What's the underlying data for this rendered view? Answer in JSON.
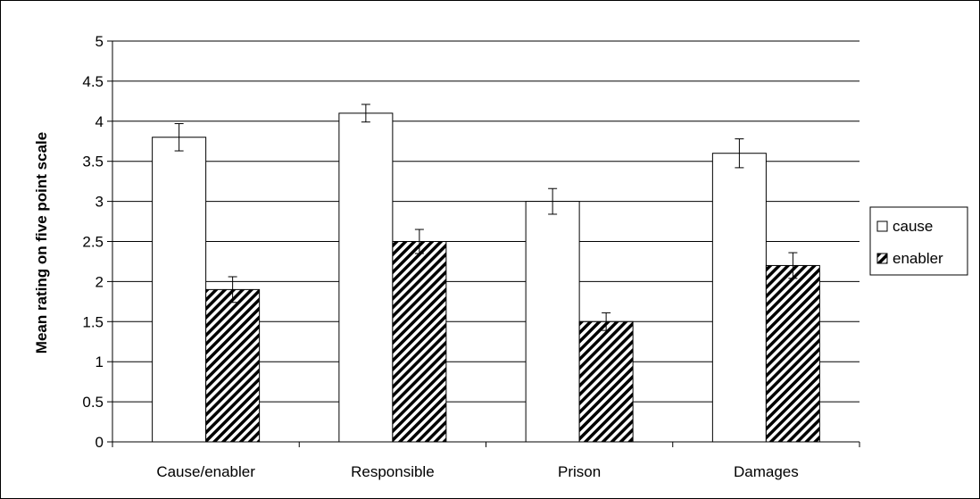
{
  "chart_data": {
    "type": "bar",
    "categories": [
      "Cause/enabler",
      "Responsible",
      "Prison",
      "Damages"
    ],
    "series": [
      {
        "name": "cause",
        "values": [
          3.8,
          4.1,
          3.0,
          3.6
        ],
        "errors": [
          0.17,
          0.11,
          0.16,
          0.18
        ],
        "pattern": "white"
      },
      {
        "name": "enabler",
        "values": [
          1.9,
          2.5,
          1.5,
          2.2
        ],
        "errors": [
          0.16,
          0.15,
          0.11,
          0.16
        ],
        "pattern": "diagonal-hatch"
      }
    ],
    "title": "",
    "xlabel": "",
    "ylabel": "Mean rating on five point scale",
    "ylim": [
      0,
      5
    ],
    "yticks": [
      "0",
      "0.5",
      "1",
      "1.5",
      "2",
      "2.5",
      "3",
      "3.5",
      "4",
      "4.5",
      "5"
    ],
    "grid": true,
    "legend_position": "right",
    "colors": {
      "bar_fill": "#ffffff",
      "bar_stroke": "#000000",
      "hatch": "#000000",
      "grid": "#000000"
    }
  }
}
